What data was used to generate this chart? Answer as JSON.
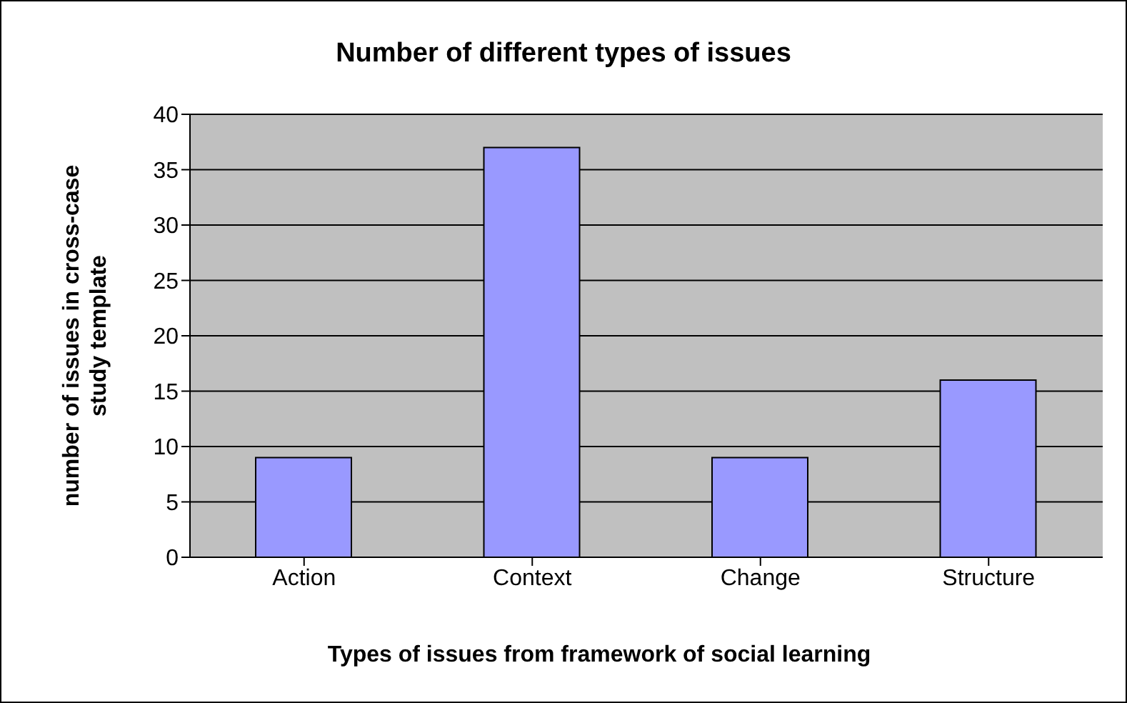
{
  "chart_data": {
    "type": "bar",
    "title": "Number of different types of issues",
    "xlabel": "Types of issues from framework of social learning",
    "ylabel": "number of issues in cross-case study template",
    "categories": [
      "Action",
      "Context",
      "Change",
      "Structure"
    ],
    "values": [
      9,
      37,
      9,
      16
    ],
    "color": "#9999ff",
    "ylim": [
      0,
      40
    ],
    "yticks": [
      0,
      5,
      10,
      15,
      20,
      25,
      30,
      35,
      40
    ],
    "grid": "y",
    "legend": false
  }
}
